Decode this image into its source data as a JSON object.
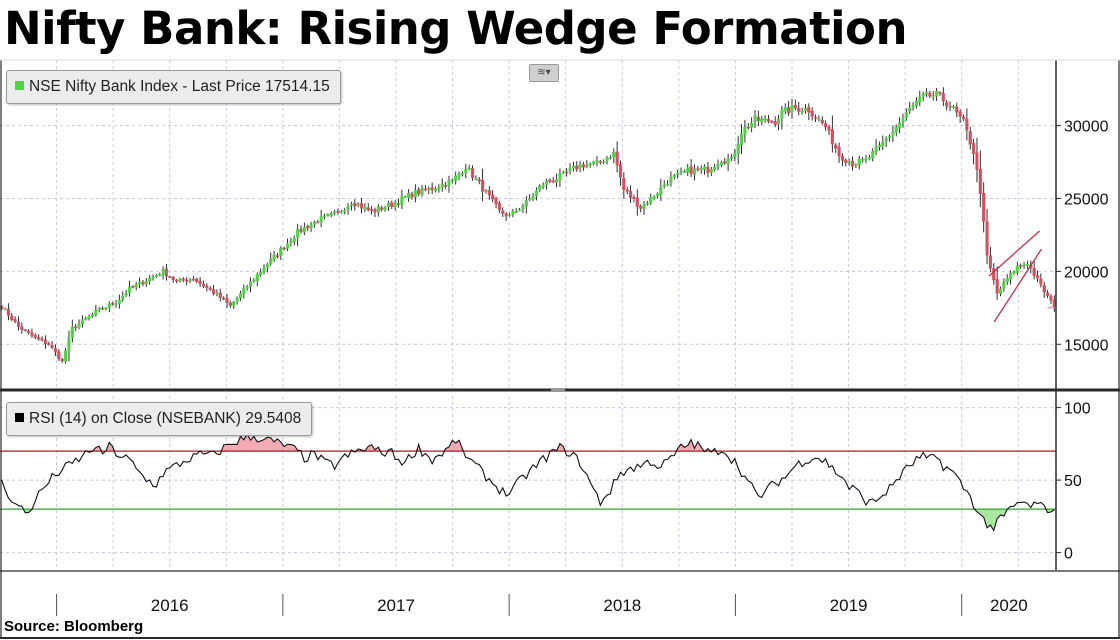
{
  "title": "Nifty Bank: Rising Wedge Formation",
  "source": "Source: Bloomberg",
  "colors": {
    "up": "#52d246",
    "down": "#d2505f",
    "rsi_line": "#111111",
    "upper_band": "#a02020",
    "lower_band": "#3aa13a",
    "overbought_fill": "#f4a8b4",
    "oversold_fill": "#a8e6a0",
    "wedge": "#c0304a",
    "last_price_line": "#d9a441",
    "grid": "#c8c8e0"
  },
  "price_panel": {
    "legend": "NSE Nifty Bank Index - Last Price 17514.15",
    "legend_icon_color": "#52d246",
    "toggle_icon": "chart-type-icon",
    "ylim": [
      12000,
      34500
    ],
    "yticks": [
      15000,
      20000,
      25000,
      30000
    ]
  },
  "rsi_panel": {
    "legend": "RSI (14)  on Close (NSEBANK) 29.5408",
    "legend_icon_color": "#000000",
    "ylim": [
      -12,
      108
    ],
    "yticks": [
      0,
      50,
      100
    ],
    "upper_band": 70,
    "lower_band": 30
  },
  "x_axis": {
    "years": [
      "2016",
      "2017",
      "2018",
      "2019",
      "2020"
    ]
  },
  "chart_data": [
    {
      "type": "candlestick",
      "title": "Nifty Bank: Rising Wedge Formation",
      "series_name": "NSE Nifty Bank Index - Last Price 17514.15",
      "frequency": "weekly",
      "x_start": "2015-10",
      "x_end": "2020-05",
      "last_price": 17514.15,
      "ylim": [
        12000,
        34500
      ],
      "grid": true,
      "legend_position": "top-left",
      "close_path": [
        [
          0,
          17600
        ],
        [
          5,
          16200
        ],
        [
          10,
          15400
        ],
        [
          14,
          15000
        ],
        [
          18,
          13800
        ],
        [
          21,
          16100
        ],
        [
          28,
          17200
        ],
        [
          34,
          17900
        ],
        [
          38,
          18800
        ],
        [
          43,
          19400
        ],
        [
          48,
          20000
        ],
        [
          52,
          19300
        ],
        [
          57,
          19500
        ],
        [
          64,
          18400
        ],
        [
          68,
          17600
        ],
        [
          72,
          18700
        ],
        [
          78,
          20300
        ],
        [
          82,
          21200
        ],
        [
          88,
          22700
        ],
        [
          94,
          23500
        ],
        [
          100,
          24000
        ],
        [
          104,
          24800
        ],
        [
          110,
          24100
        ],
        [
          116,
          24600
        ],
        [
          122,
          25300
        ],
        [
          128,
          25700
        ],
        [
          134,
          26200
        ],
        [
          138,
          27200
        ],
        [
          143,
          25700
        ],
        [
          148,
          24100
        ],
        [
          151,
          23800
        ],
        [
          156,
          24700
        ],
        [
          161,
          26000
        ],
        [
          167,
          26600
        ],
        [
          172,
          27300
        ],
        [
          177,
          27400
        ],
        [
          182,
          28100
        ],
        [
          185,
          25600
        ],
        [
          190,
          24400
        ],
        [
          194,
          25200
        ],
        [
          198,
          26200
        ],
        [
          204,
          26900
        ],
        [
          210,
          27000
        ],
        [
          214,
          27700
        ],
        [
          217,
          27600
        ],
        [
          220,
          29600
        ],
        [
          224,
          30400
        ],
        [
          230,
          30300
        ],
        [
          232,
          30900
        ],
        [
          236,
          31200
        ],
        [
          240,
          31100
        ],
        [
          245,
          29900
        ],
        [
          249,
          28000
        ],
        [
          253,
          27400
        ],
        [
          257,
          27600
        ],
        [
          261,
          28500
        ],
        [
          266,
          29900
        ],
        [
          270,
          31100
        ],
        [
          274,
          32000
        ],
        [
          278,
          32100
        ],
        [
          282,
          31400
        ],
        [
          286,
          30200
        ],
        [
          289,
          28200
        ],
        [
          291,
          25500
        ],
        [
          293,
          21000
        ],
        [
          296,
          18500
        ],
        [
          299,
          19500
        ],
        [
          302,
          20300
        ],
        [
          305,
          20600
        ],
        [
          309,
          19000
        ],
        [
          313,
          17514
        ]
      ]
    },
    {
      "type": "line",
      "series_name": "RSI (14)  on Close (NSEBANK) 29.5408",
      "last_value": 29.5408,
      "ylim": [
        -12,
        108
      ],
      "reference_lines": [
        70,
        30
      ],
      "grid": true,
      "legend_position": "top-left",
      "path": [
        [
          0,
          48
        ],
        [
          4,
          33
        ],
        [
          8,
          27
        ],
        [
          10,
          37
        ],
        [
          13,
          46
        ],
        [
          16,
          54
        ],
        [
          20,
          60
        ],
        [
          24,
          66
        ],
        [
          27,
          72
        ],
        [
          30,
          69
        ],
        [
          32,
          73
        ],
        [
          35,
          67
        ],
        [
          38,
          64
        ],
        [
          40,
          57
        ],
        [
          43,
          50
        ],
        [
          46,
          47
        ],
        [
          48,
          55
        ],
        [
          52,
          60
        ],
        [
          56,
          65
        ],
        [
          60,
          68
        ],
        [
          63,
          67
        ],
        [
          66,
          72
        ],
        [
          68,
          75
        ],
        [
          71,
          78
        ],
        [
          74,
          80
        ],
        [
          77,
          79
        ],
        [
          80,
          77
        ],
        [
          83,
          75
        ],
        [
          85,
          73
        ],
        [
          88,
          70
        ],
        [
          90,
          65
        ],
        [
          93,
          68
        ],
        [
          96,
          62
        ],
        [
          99,
          60
        ],
        [
          101,
          64
        ],
        [
          103,
          67
        ],
        [
          106,
          70
        ],
        [
          110,
          73
        ],
        [
          113,
          68
        ],
        [
          115,
          71
        ],
        [
          117,
          66
        ],
        [
          120,
          62
        ],
        [
          122,
          68
        ],
        [
          124,
          72
        ],
        [
          126,
          68
        ],
        [
          128,
          64
        ],
        [
          130,
          67
        ],
        [
          133,
          72
        ],
        [
          135,
          78
        ],
        [
          137,
          70
        ],
        [
          140,
          62
        ],
        [
          143,
          55
        ],
        [
          146,
          48
        ],
        [
          149,
          42
        ],
        [
          151,
          41
        ],
        [
          154,
          49
        ],
        [
          157,
          56
        ],
        [
          160,
          62
        ],
        [
          163,
          68
        ],
        [
          166,
          72
        ],
        [
          169,
          69
        ],
        [
          172,
          62
        ],
        [
          174,
          53
        ],
        [
          176,
          43
        ],
        [
          178,
          35
        ],
        [
          181,
          43
        ],
        [
          184,
          55
        ],
        [
          187,
          58
        ],
        [
          190,
          60
        ],
        [
          193,
          63
        ],
        [
          196,
          59
        ],
        [
          199,
          65
        ],
        [
          202,
          72
        ],
        [
          205,
          76
        ],
        [
          208,
          72
        ],
        [
          211,
          68
        ],
        [
          214,
          72
        ],
        [
          217,
          65
        ],
        [
          219,
          60
        ],
        [
          221,
          52
        ],
        [
          223,
          45
        ],
        [
          225,
          38
        ],
        [
          227,
          42
        ],
        [
          230,
          48
        ],
        [
          233,
          52
        ],
        [
          236,
          60
        ],
        [
          239,
          64
        ],
        [
          242,
          66
        ],
        [
          245,
          63
        ],
        [
          247,
          58
        ],
        [
          250,
          52
        ],
        [
          252,
          45
        ],
        [
          254,
          43
        ],
        [
          256,
          38
        ],
        [
          258,
          34
        ],
        [
          260,
          36
        ],
        [
          262,
          40
        ],
        [
          264,
          44
        ],
        [
          266,
          50
        ],
        [
          268,
          55
        ],
        [
          270,
          60
        ],
        [
          272,
          64
        ],
        [
          274,
          66
        ],
        [
          276,
          64
        ],
        [
          278,
          66
        ],
        [
          280,
          60
        ],
        [
          283,
          55
        ],
        [
          285,
          48
        ],
        [
          287,
          42
        ],
        [
          289,
          34
        ],
        [
          291,
          25
        ],
        [
          293,
          20
        ],
        [
          295,
          17
        ],
        [
          297,
          23
        ],
        [
          300,
          30
        ],
        [
          303,
          35
        ],
        [
          305,
          32
        ],
        [
          307,
          33
        ],
        [
          310,
          31
        ],
        [
          313,
          29.54
        ]
      ]
    }
  ]
}
